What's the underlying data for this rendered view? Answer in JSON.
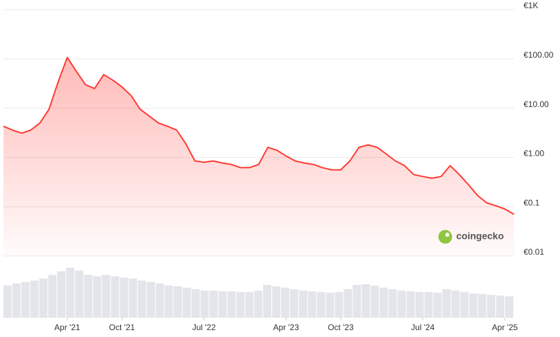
{
  "chart_data": {
    "type": "line",
    "log_scale": true,
    "grid": true,
    "x": [
      "2020-09",
      "2020-10",
      "2020-11",
      "2020-12",
      "2021-01",
      "2021-02",
      "2021-03",
      "2021-04",
      "2021-05",
      "2021-06",
      "2021-07",
      "2021-08",
      "2021-09",
      "2021-10",
      "2021-11",
      "2021-12",
      "2022-01",
      "2022-02",
      "2022-03",
      "2022-04",
      "2022-05",
      "2022-06",
      "2022-07",
      "2022-08",
      "2022-09",
      "2022-10",
      "2022-11",
      "2022-12",
      "2023-01",
      "2023-02",
      "2023-03",
      "2023-04",
      "2023-05",
      "2023-06",
      "2023-07",
      "2023-08",
      "2023-09",
      "2023-10",
      "2023-11",
      "2023-12",
      "2024-01",
      "2024-02",
      "2024-03",
      "2024-04",
      "2024-05",
      "2024-06",
      "2024-07",
      "2024-08",
      "2024-09",
      "2024-10",
      "2024-11",
      "2024-12",
      "2025-01",
      "2025-02",
      "2025-03",
      "2025-04",
      "2025-05"
    ],
    "series": [
      {
        "color": "#ff3a33",
        "values": [
          4.3,
          3.6,
          3.1,
          3.6,
          5,
          9.5,
          34,
          107,
          56,
          30,
          25,
          48,
          37,
          27,
          18,
          9.5,
          6.9,
          5,
          4.3,
          3.6,
          1.9,
          0.85,
          0.8,
          0.85,
          0.77,
          0.72,
          0.62,
          0.62,
          0.72,
          1.6,
          1.4,
          1.07,
          0.85,
          0.77,
          0.72,
          0.62,
          0.56,
          0.56,
          0.85,
          1.6,
          1.8,
          1.6,
          1.17,
          0.85,
          0.68,
          0.45,
          0.41,
          0.38,
          0.41,
          0.68,
          0.45,
          0.28,
          0.17,
          0.12,
          0.105,
          0.09,
          0.07
        ]
      }
    ],
    "volume": [
      45,
      48,
      50,
      52,
      55,
      60,
      65,
      70,
      66,
      60,
      58,
      60,
      58,
      56,
      55,
      52,
      50,
      48,
      45,
      44,
      42,
      40,
      38,
      38,
      37,
      37,
      36,
      36,
      38,
      46,
      44,
      42,
      40,
      38,
      37,
      36,
      35,
      36,
      40,
      46,
      47,
      45,
      42,
      40,
      38,
      37,
      36,
      36,
      35,
      40,
      38,
      36,
      34,
      33,
      32,
      31,
      30
    ],
    "xlim": [
      "2020-09",
      "2025-05"
    ],
    "xticks": [
      {
        "value": "2021-04",
        "label": "Apr '21"
      },
      {
        "value": "2021-10",
        "label": "Oct '21"
      },
      {
        "value": "2022-07",
        "label": "Jul '22"
      },
      {
        "value": "2023-04",
        "label": "Apr '23"
      },
      {
        "value": "2023-10",
        "label": "Oct '23"
      },
      {
        "value": "2024-07",
        "label": "Jul '24"
      },
      {
        "value": "2025-04",
        "label": "Apr '25"
      }
    ],
    "ylim": [
      0.01,
      1000
    ],
    "yticks": [
      {
        "value": 1000,
        "label": "€1K"
      },
      {
        "value": 100,
        "label": "€100.00"
      },
      {
        "value": 10,
        "label": "€10.00"
      },
      {
        "value": 1,
        "label": "€1.00"
      },
      {
        "value": 0.1,
        "label": "€0.1"
      },
      {
        "value": 0.01,
        "label": "€0.01"
      }
    ],
    "watermark": "coingecko"
  }
}
